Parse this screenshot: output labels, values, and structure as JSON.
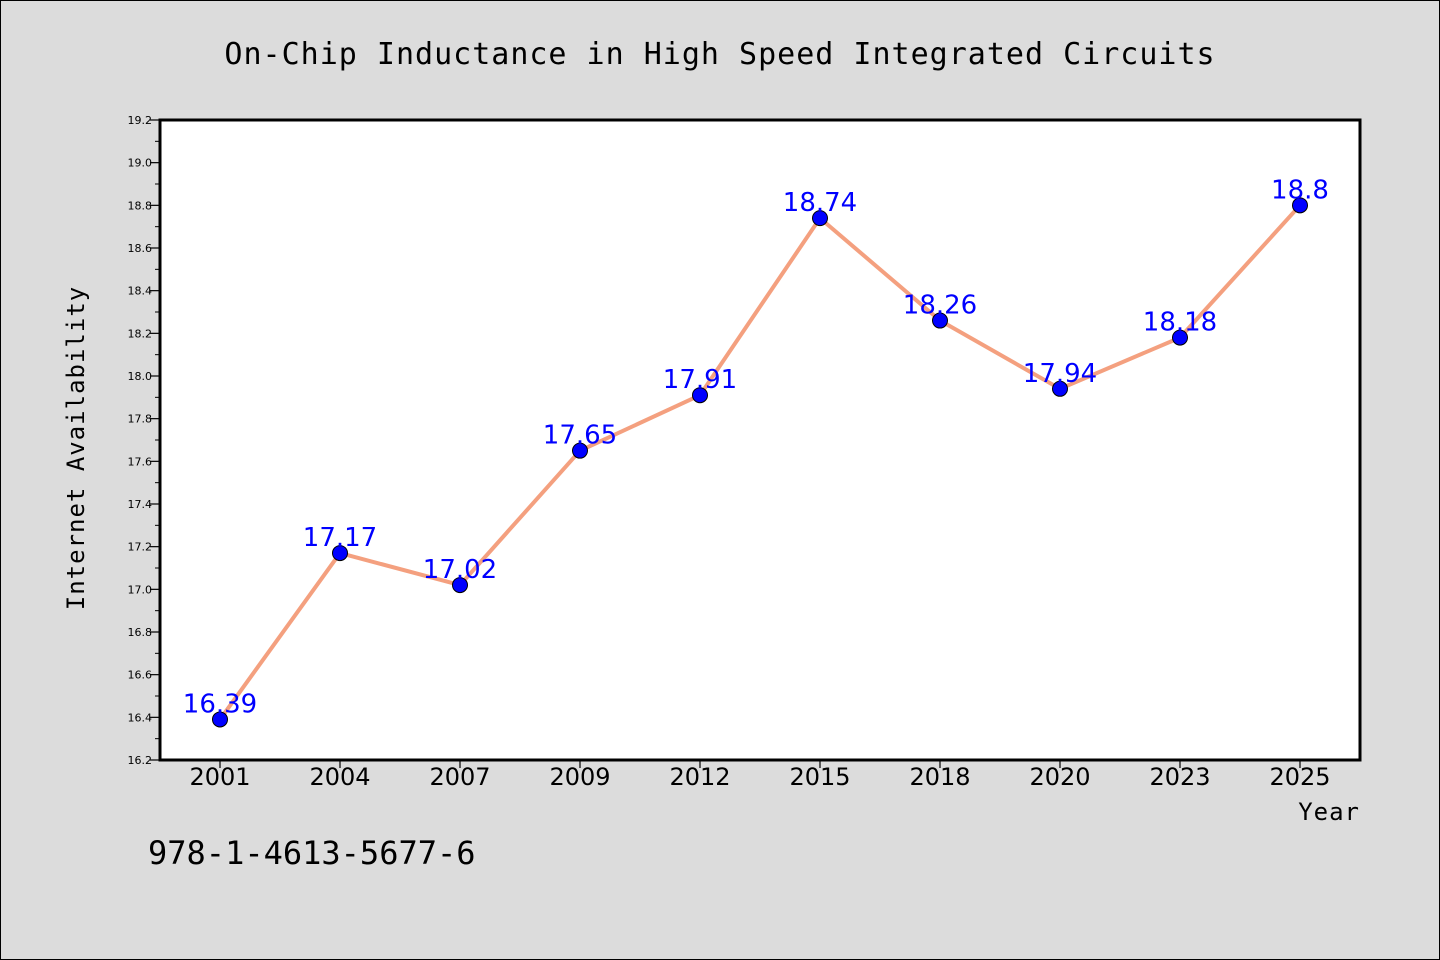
{
  "chart_data": {
    "type": "line",
    "title": "On-Chip Inductance in High Speed Integrated Circuits",
    "xlabel": "Year",
    "ylabel": "Internet Availability",
    "categories": [
      "2001",
      "2004",
      "2007",
      "2009",
      "2012",
      "2015",
      "2018",
      "2020",
      "2023",
      "2025"
    ],
    "values": [
      16.39,
      17.17,
      17.02,
      17.65,
      17.91,
      18.74,
      18.26,
      17.94,
      18.18,
      18.8
    ],
    "data_labels": [
      "16.39",
      "17.17",
      "17.02",
      "17.65",
      "17.91",
      "18.74",
      "18.26",
      "17.94",
      "18.18",
      "18.8"
    ],
    "ylim": [
      16.2,
      19.2
    ],
    "yticks": [
      "16.2",
      "16.4",
      "16.6",
      "16.8",
      "17.0",
      "17.2",
      "17.4",
      "17.6",
      "17.8",
      "18.0",
      "18.2",
      "18.4",
      "18.6",
      "18.8",
      "19.0",
      "19.2"
    ],
    "grid": false,
    "line_color": "#f4a07f",
    "marker_color": "#0000ff",
    "label_color": "#0000ff",
    "plot_background": "#ffffff",
    "figure_background": "#dcdcdc"
  },
  "footer": {
    "isbn": "978-1-4613-5677-6"
  }
}
